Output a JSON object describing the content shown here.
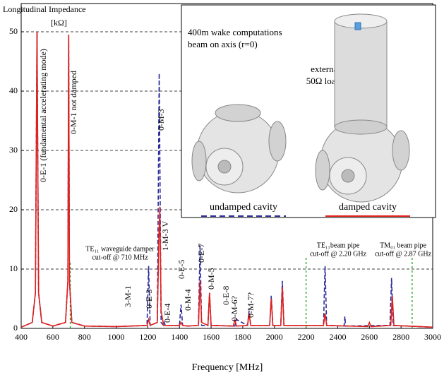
{
  "chart_data": {
    "type": "line",
    "y_title": "Longitudinal Impedance",
    "y_unit": "[kΩ]",
    "x_title": "Frequency [MHz]",
    "xlim": [
      400,
      3000
    ],
    "xticks": [
      400,
      600,
      800,
      1000,
      1200,
      1400,
      1600,
      1800,
      2000,
      2200,
      2400,
      2600,
      2800,
      3000
    ],
    "ylim": [
      0,
      50
    ],
    "yticks": [
      0,
      10,
      20,
      30,
      40,
      50
    ],
    "grid": true,
    "series": [
      {
        "name": "undamped cavity",
        "color": "#2b2b9a",
        "dashed": true,
        "x": [
          400,
          470,
          490,
          500,
          510,
          530,
          600,
          680,
          695,
          700,
          705,
          720,
          800,
          1000,
          1195,
          1205,
          1215,
          1260,
          1272,
          1284,
          1300,
          1305,
          1310,
          1400,
          1410,
          1420,
          1450,
          1520,
          1530,
          1540,
          1580,
          1590,
          1600,
          1750,
          1760,
          1830,
          1840,
          1850,
          1970,
          1980,
          1990,
          2040,
          2050,
          2060,
          2310,
          2320,
          2330,
          2440,
          2445,
          2450,
          2730,
          2740,
          2750,
          3000
        ],
        "values": [
          0.2,
          1,
          6,
          50,
          6,
          1,
          0.4,
          1,
          8,
          49.5,
          8,
          1,
          0.4,
          0.3,
          0.5,
          10.5,
          0.5,
          1,
          43,
          1,
          0.5,
          1,
          0.5,
          0.5,
          4,
          0.5,
          0.4,
          0.5,
          14,
          0.5,
          0.5,
          6,
          0.5,
          0.4,
          1.5,
          0.5,
          3,
          0.5,
          0.5,
          5.5,
          0.5,
          0.5,
          8,
          0.5,
          0.5,
          10.5,
          0.5,
          0.4,
          2,
          0.4,
          0.5,
          8.5,
          0.5,
          0.2
        ]
      },
      {
        "name": "damped cavity",
        "color": "#e0201b",
        "dashed": false,
        "x": [
          400,
          470,
          490,
          500,
          510,
          530,
          600,
          680,
          695,
          700,
          705,
          720,
          800,
          1000,
          1195,
          1205,
          1215,
          1260,
          1270,
          1276,
          1284,
          1300,
          1400,
          1410,
          1420,
          1450,
          1520,
          1530,
          1540,
          1580,
          1590,
          1600,
          1740,
          1750,
          1760,
          1830,
          1840,
          1850,
          1970,
          1980,
          1990,
          2040,
          2050,
          2060,
          2310,
          2320,
          2330,
          2590,
          2600,
          2610,
          2735,
          2745,
          2755,
          3000
        ],
        "values": [
          0.2,
          1,
          6,
          50,
          6,
          1,
          0.4,
          1,
          8,
          49.5,
          8,
          1,
          0.4,
          0.3,
          0.5,
          1.5,
          0.5,
          1,
          15,
          20.5,
          3,
          0.5,
          0.5,
          1,
          0.5,
          0.4,
          0.5,
          8,
          1,
          0.5,
          6,
          0.5,
          0.4,
          1.5,
          0.4,
          0.5,
          2.5,
          0.5,
          0.5,
          5,
          0.5,
          0.5,
          7,
          0.5,
          0.5,
          2.5,
          0.5,
          0.3,
          1,
          0.3,
          0.5,
          5.5,
          0.5,
          0.2
        ]
      }
    ],
    "annotations": [
      "0-E-1 (fundamental accelerating mode)",
      "0-M-1 not damped",
      "0-M-3",
      "1-M-3 V",
      "0-E-3",
      "0-E-4",
      "3-M-1",
      "0-E-5",
      "0-M-4",
      "0-E-7",
      "0-M-5",
      "0-E-8",
      "0-M-6?",
      "0-M-7?"
    ],
    "cutoffs": [
      {
        "text": [
          "TE₁₁ waveguide damper",
          "cut-off @ 710 MHz"
        ],
        "x": 710,
        "color": "#1aa11a"
      },
      {
        "text": [
          "TE₁₁beam pipe",
          "cut-off @ 2.20 GHz"
        ],
        "x": 2200,
        "color": "#1aa11a"
      },
      {
        "text": [
          "TM₀₁ beam pipe",
          "cut-off @ 2.87 GHz"
        ],
        "x": 2870,
        "color": "#1aa11a"
      }
    ],
    "inset": {
      "lines": [
        "400m wake computations",
        "beam on axis (r=0)"
      ],
      "load": [
        "external",
        "50Ω load"
      ]
    }
  }
}
